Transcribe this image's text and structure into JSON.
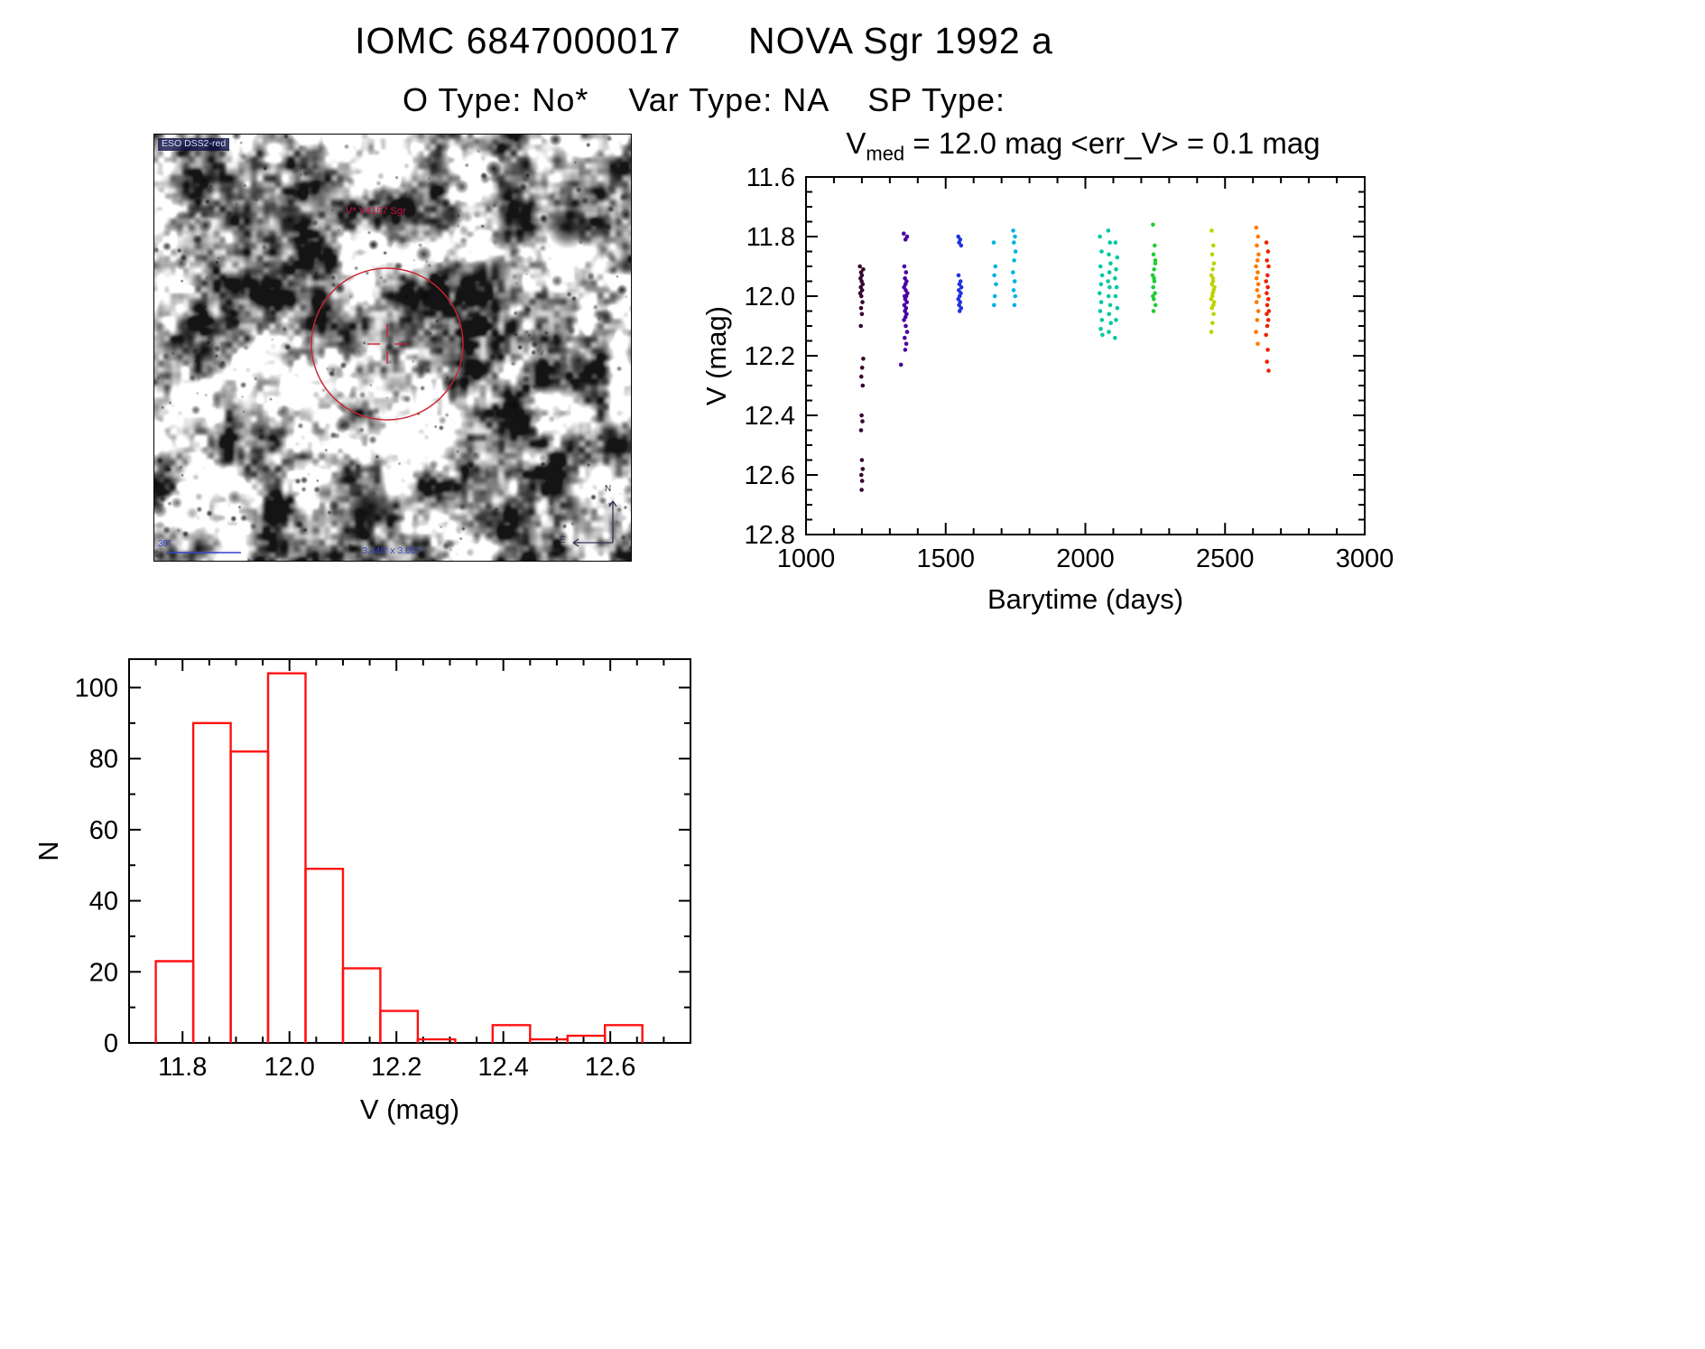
{
  "header": {
    "title": "IOMC 6847000017      NOVA Sgr 1992 a",
    "subtitle": "O Type: No*    Var Type: NA    SP Type:"
  },
  "finding_chart": {
    "survey_label": "ESO DSS2-red",
    "star_label": "V* V4157 Sgr",
    "fov_label": "3.448' x 3.057'",
    "scale_label": "30\"",
    "compass_north": "N",
    "compass_east": "E",
    "circle_color": "#cc2233",
    "annotation_color": "#3344cc"
  },
  "chart_data": [
    {
      "type": "scatter",
      "title_main": "V",
      "title_sub": "med",
      "title_rest": " = 12.0 mag <err_V> = 0.1 mag",
      "xlabel": "Barytime (days)",
      "ylabel": "V (mag)",
      "xlim": [
        1000,
        3000
      ],
      "ylim_top": 11.6,
      "ylim_bottom": 12.8,
      "y_axis_inverted": true,
      "grid": false,
      "xticks": [
        1000,
        1500,
        2000,
        2500,
        3000
      ],
      "xtick_labels": [
        "1000",
        "1500",
        "2000",
        "2500",
        "3000"
      ],
      "yticks": [
        11.6,
        11.8,
        12.0,
        12.2,
        12.4,
        12.6,
        12.8
      ],
      "ytick_labels": [
        "11.6",
        "11.8",
        "12.0",
        "12.2",
        "12.4",
        "12.6",
        "12.8"
      ],
      "clusters": [
        {
          "color": "#38062e",
          "points": [
            [
              1193,
              11.9
            ],
            [
              1197,
              11.92
            ],
            [
              1200,
              11.93
            ],
            [
              1195,
              11.94
            ],
            [
              1199,
              11.95
            ],
            [
              1203,
              11.96
            ],
            [
              1196,
              11.97
            ],
            [
              1201,
              11.98
            ],
            [
              1194,
              11.99
            ],
            [
              1198,
              12.0
            ],
            [
              1202,
              12.02
            ],
            [
              1197,
              12.04
            ],
            [
              1205,
              11.91
            ],
            [
              1200,
              12.06
            ],
            [
              1196,
              12.1
            ],
            [
              1205,
              12.21
            ],
            [
              1201,
              12.24
            ],
            [
              1198,
              12.27
            ],
            [
              1203,
              12.3
            ],
            [
              1199,
              12.4
            ],
            [
              1202,
              12.42
            ],
            [
              1197,
              12.45
            ],
            [
              1200,
              12.55
            ],
            [
              1203,
              12.58
            ],
            [
              1198,
              12.6
            ],
            [
              1201,
              12.62
            ],
            [
              1199,
              12.65
            ]
          ]
        },
        {
          "color": "#4a00a0",
          "points": [
            [
              1350,
              11.79
            ],
            [
              1356,
              11.81
            ],
            [
              1362,
              11.8
            ],
            [
              1352,
              11.9
            ],
            [
              1358,
              11.92
            ],
            [
              1354,
              11.94
            ],
            [
              1360,
              11.95
            ],
            [
              1356,
              11.96
            ],
            [
              1351,
              11.97
            ],
            [
              1357,
              11.98
            ],
            [
              1363,
              11.99
            ],
            [
              1353,
              12.0
            ],
            [
              1359,
              12.0
            ],
            [
              1355,
              12.01
            ],
            [
              1361,
              12.02
            ],
            [
              1352,
              12.03
            ],
            [
              1358,
              12.04
            ],
            [
              1354,
              12.05
            ],
            [
              1360,
              12.06
            ],
            [
              1356,
              12.07
            ],
            [
              1351,
              12.08
            ],
            [
              1357,
              12.1
            ],
            [
              1362,
              12.12
            ],
            [
              1353,
              12.14
            ],
            [
              1359,
              12.16
            ],
            [
              1355,
              12.18
            ],
            [
              1340,
              12.23
            ]
          ]
        },
        {
          "color": "#2233dd",
          "points": [
            [
              1545,
              11.8
            ],
            [
              1552,
              11.81
            ],
            [
              1548,
              11.82
            ],
            [
              1555,
              11.83
            ],
            [
              1546,
              11.93
            ],
            [
              1553,
              11.95
            ],
            [
              1549,
              11.96
            ],
            [
              1556,
              11.97
            ],
            [
              1547,
              11.98
            ],
            [
              1554,
              11.99
            ],
            [
              1550,
              12.0
            ],
            [
              1545,
              12.01
            ],
            [
              1552,
              12.02
            ],
            [
              1548,
              12.03
            ],
            [
              1555,
              12.04
            ],
            [
              1550,
              12.05
            ]
          ]
        },
        {
          "color": "#00b4e0",
          "points": [
            [
              1672,
              11.82
            ],
            [
              1678,
              11.9
            ],
            [
              1674,
              11.93
            ],
            [
              1680,
              11.96
            ],
            [
              1676,
              12.0
            ],
            [
              1673,
              12.03
            ],
            [
              1742,
              11.78
            ],
            [
              1748,
              11.8
            ],
            [
              1744,
              11.82
            ],
            [
              1750,
              11.85
            ],
            [
              1745,
              11.88
            ],
            [
              1741,
              11.92
            ],
            [
              1747,
              11.95
            ],
            [
              1743,
              11.98
            ],
            [
              1749,
              12.0
            ],
            [
              1746,
              12.03
            ]
          ]
        },
        {
          "color": "#00c9a0",
          "points": [
            [
              2052,
              11.8
            ],
            [
              2058,
              11.85
            ],
            [
              2054,
              11.9
            ],
            [
              2060,
              11.93
            ],
            [
              2056,
              11.96
            ],
            [
              2051,
              11.99
            ],
            [
              2057,
              12.02
            ],
            [
              2053,
              12.05
            ],
            [
              2059,
              12.08
            ],
            [
              2055,
              12.11
            ],
            [
              2061,
              12.13
            ],
            [
              2082,
              11.78
            ],
            [
              2088,
              11.82
            ],
            [
              2084,
              11.86
            ],
            [
              2090,
              11.89
            ],
            [
              2086,
              11.92
            ],
            [
              2081,
              11.95
            ],
            [
              2087,
              11.97
            ],
            [
              2083,
              12.0
            ],
            [
              2089,
              12.03
            ],
            [
              2085,
              12.06
            ],
            [
              2091,
              12.09
            ],
            [
              2084,
              12.12
            ],
            [
              2108,
              11.82
            ],
            [
              2114,
              11.87
            ],
            [
              2110,
              11.91
            ],
            [
              2106,
              11.94
            ],
            [
              2112,
              11.97
            ],
            [
              2108,
              12.0
            ],
            [
              2114,
              12.04
            ],
            [
              2110,
              12.08
            ],
            [
              2106,
              12.14
            ]
          ]
        },
        {
          "color": "#22cc33",
          "points": [
            [
              2242,
              11.76
            ],
            [
              2248,
              11.83
            ],
            [
              2244,
              11.86
            ],
            [
              2250,
              11.89
            ],
            [
              2246,
              11.91
            ],
            [
              2241,
              11.93
            ],
            [
              2247,
              11.95
            ],
            [
              2243,
              11.97
            ],
            [
              2249,
              11.99
            ],
            [
              2245,
              12.01
            ],
            [
              2251,
              12.03
            ],
            [
              2244,
              12.05
            ],
            [
              2250,
              11.88
            ],
            [
              2246,
              11.94
            ],
            [
              2242,
              12.0
            ]
          ]
        },
        {
          "color": "#bcd400",
          "points": [
            [
              2452,
              11.78
            ],
            [
              2458,
              11.83
            ],
            [
              2454,
              11.86
            ],
            [
              2460,
              11.89
            ],
            [
              2456,
              11.91
            ],
            [
              2451,
              11.93
            ],
            [
              2457,
              11.95
            ],
            [
              2453,
              11.96
            ],
            [
              2459,
              11.98
            ],
            [
              2455,
              12.0
            ],
            [
              2461,
              12.02
            ],
            [
              2453,
              12.04
            ],
            [
              2459,
              12.06
            ],
            [
              2455,
              12.09
            ],
            [
              2451,
              12.12
            ],
            [
              2457,
              11.94
            ],
            [
              2462,
              11.97
            ],
            [
              2456,
              11.99
            ],
            [
              2450,
              12.01
            ],
            [
              2458,
              12.03
            ]
          ]
        },
        {
          "color": "#ff7a00",
          "points": [
            [
              2612,
              11.77
            ],
            [
              2618,
              11.8
            ],
            [
              2614,
              11.83
            ],
            [
              2620,
              11.86
            ],
            [
              2616,
              11.88
            ],
            [
              2611,
              11.9
            ],
            [
              2617,
              11.92
            ],
            [
              2613,
              11.94
            ],
            [
              2619,
              11.96
            ],
            [
              2615,
              11.98
            ],
            [
              2621,
              12.0
            ],
            [
              2613,
              12.02
            ],
            [
              2619,
              12.05
            ],
            [
              2615,
              12.08
            ],
            [
              2611,
              12.12
            ],
            [
              2617,
              12.16
            ]
          ]
        },
        {
          "color": "#ee2200",
          "points": [
            [
              2648,
              11.82
            ],
            [
              2654,
              11.85
            ],
            [
              2650,
              11.88
            ],
            [
              2656,
              11.9
            ],
            [
              2652,
              11.93
            ],
            [
              2647,
              11.95
            ],
            [
              2653,
              11.97
            ],
            [
              2649,
              11.99
            ],
            [
              2655,
              12.01
            ],
            [
              2651,
              12.03
            ],
            [
              2657,
              12.05
            ],
            [
              2649,
              12.06
            ],
            [
              2655,
              12.08
            ],
            [
              2651,
              12.1
            ],
            [
              2647,
              12.13
            ],
            [
              2653,
              12.18
            ],
            [
              2650,
              12.22
            ],
            [
              2656,
              12.25
            ]
          ]
        }
      ]
    },
    {
      "type": "histogram",
      "xlabel": "V (mag)",
      "ylabel": "N",
      "xlim": [
        11.7,
        12.75
      ],
      "ylim": [
        0,
        108
      ],
      "grid": false,
      "xticks": [
        11.8,
        12.0,
        12.2,
        12.4,
        12.6
      ],
      "xtick_labels": [
        "11.8",
        "12.0",
        "12.2",
        "12.4",
        "12.6"
      ],
      "yticks": [
        0,
        20,
        40,
        60,
        80,
        100
      ],
      "ytick_labels": [
        "0",
        "20",
        "40",
        "60",
        "80",
        "100"
      ],
      "bin_start": 11.75,
      "bin_width": 0.07,
      "counts": [
        23,
        90,
        82,
        104,
        49,
        21,
        9,
        1,
        0,
        5,
        1,
        2,
        5
      ],
      "bar_color": "#ff1111"
    }
  ]
}
